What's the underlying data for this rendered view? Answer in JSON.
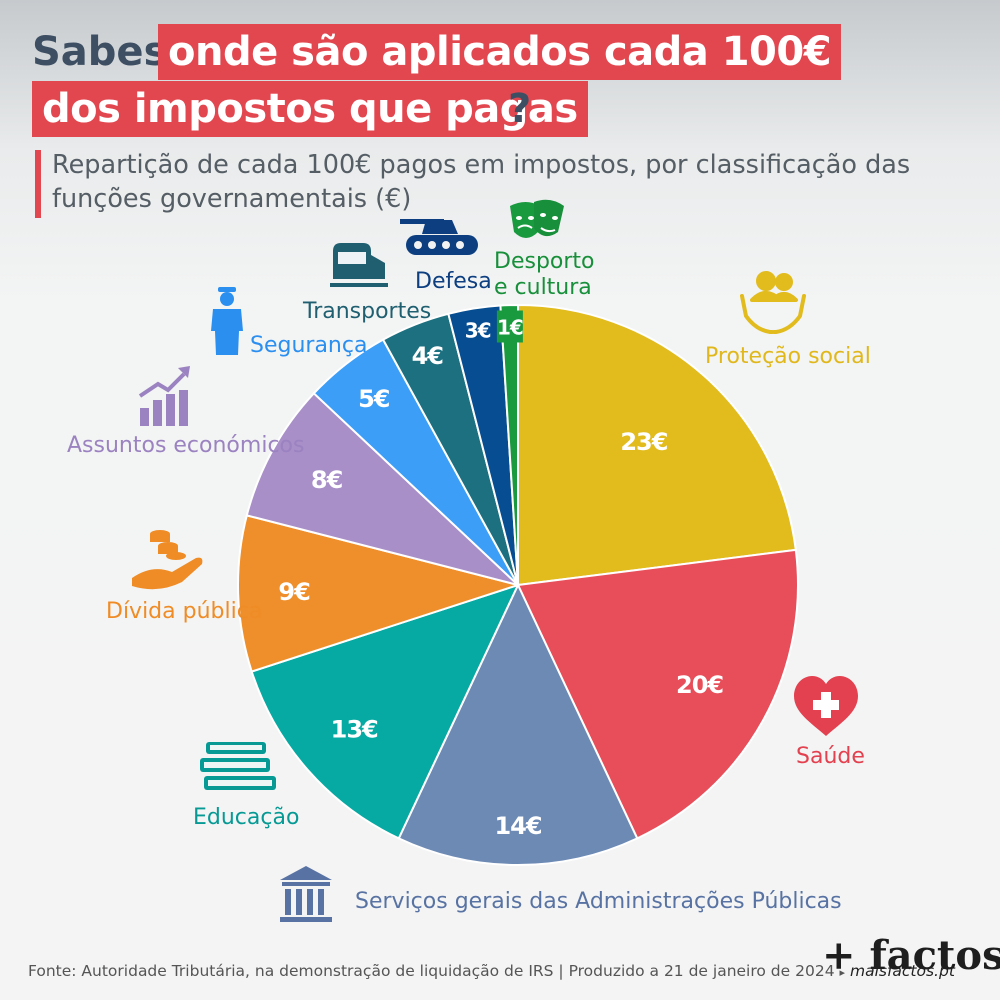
{
  "title": {
    "part1": "Sabes",
    "part2": "onde são aplicados cada 100€",
    "part3": "dos impostos que pagas",
    "part4": "?"
  },
  "subtitle": "Repartição de cada 100€ pagos em impostos, por classificação das funções governamentais (€)",
  "chart_data": {
    "type": "pie",
    "unit": "€",
    "slices": [
      {
        "label": "Proteção social",
        "value": 23,
        "display": "23€",
        "color": "#e2bb1d",
        "label_color": "#e0b81c"
      },
      {
        "label": "Saúde",
        "value": 20,
        "display": "20€",
        "color": "#e74e59",
        "label_color": "#e3414f"
      },
      {
        "label": "Serviços gerais das Administrações Públicas",
        "value": 14,
        "display": "14€",
        "color": "#6d8ab5",
        "label_color": "#5873a3"
      },
      {
        "label": "Educação",
        "value": 13,
        "display": "13€",
        "color": "#07a9a3",
        "label_color": "#079a95"
      },
      {
        "label": "Dívida pública",
        "value": 9,
        "display": "9€",
        "color": "#ef8f2b",
        "label_color": "#ef8c25"
      },
      {
        "label": "Assuntos económicos",
        "value": 8,
        "display": "8€",
        "color": "#a88fc8",
        "label_color": "#9b82c0"
      },
      {
        "label": "Segurança",
        "value": 5,
        "display": "5€",
        "color": "#3c9ef7",
        "label_color": "#2b8ff0"
      },
      {
        "label": "Transportes",
        "value": 4,
        "display": "4€",
        "color": "#1d7080",
        "label_color": "#1f5f70"
      },
      {
        "label": "Defesa",
        "value": 3,
        "display": "3€",
        "color": "#064e91",
        "label_color": "#0d3f80"
      },
      {
        "label": "Desporto e cultura",
        "value": 1,
        "display": "1€",
        "color": "#1a9a3f",
        "label_color": "#188f3a"
      }
    ]
  },
  "footer": {
    "source": "Fonte: Autoridade Tributária, na demonstração de liquidação de IRS | Produzido a 21 de janeiro de 2024",
    "arrow": "▸",
    "site": "maisfactos.pt"
  },
  "brand": "+ factos",
  "icons": [
    "cart-hands-people-icon",
    "heart-cross-icon",
    "columns-building-icon",
    "books-icon",
    "coins-hand-icon",
    "growth-chart-icon",
    "police-officer-icon",
    "train-icon",
    "tank-icon",
    "theatre-masks-icon"
  ]
}
